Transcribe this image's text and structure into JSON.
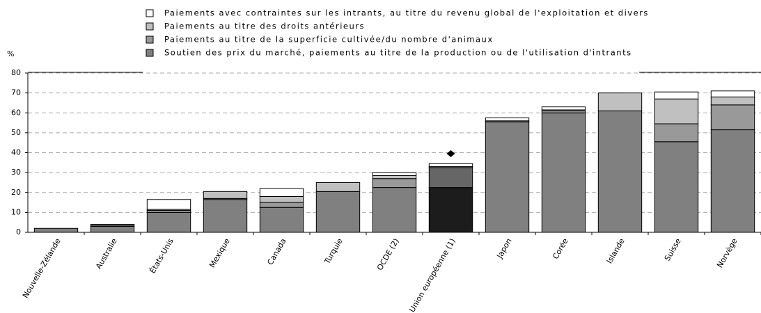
{
  "chart_data": {
    "type": "stacked_bar",
    "y_label": "%",
    "categories": [
      "Nouvelle-Zélande",
      "Australie",
      "États-Unis",
      "Mexique",
      "Canada",
      "Turquie",
      "OCDE (2)",
      "Union européenne (1)",
      "Japon",
      "Corée",
      "Islande",
      "Suisse",
      "Norvège"
    ],
    "series": [
      {
        "name": "Soutien des prix du marché, paiements au titre de la production ou de l'utilisation d'intrants",
        "color": "#808080",
        "highlight_color": "#1c1c1c",
        "values": [
          2,
          3,
          10,
          16.5,
          12.5,
          20.5,
          22.5,
          22.5,
          55.5,
          60,
          61,
          45.5,
          51.5
        ]
      },
      {
        "name": "Paiements au titre de la superficie cultivée/du nombre d'animaux",
        "color": "#999999",
        "highlight_color": "#666666",
        "values": [
          0,
          0.5,
          1,
          0.5,
          2.5,
          0,
          4.5,
          10,
          0.5,
          1,
          0,
          9,
          12.5
        ]
      },
      {
        "name": "Paiements au titre des droits antérieurs",
        "color": "#c0c0c0",
        "highlight_color": "#9a9a9a",
        "values": [
          0,
          0,
          0.5,
          3.5,
          3,
          4.5,
          1.5,
          0.5,
          0,
          0.5,
          9,
          12.5,
          4
        ]
      },
      {
        "name": "Paiements avec contraintes sur les intrants, au titre du revenu global de l'exploitation et divers",
        "color": "#ffffff",
        "highlight_color": "#ffffff",
        "values": [
          0,
          0.5,
          5,
          0,
          4,
          0,
          1.5,
          1.5,
          1.5,
          1.5,
          0,
          3.5,
          3
        ]
      }
    ],
    "highlight": [
      false,
      false,
      false,
      false,
      false,
      false,
      false,
      true,
      false,
      false,
      false,
      false,
      false
    ],
    "marker_values": [
      null,
      null,
      null,
      null,
      null,
      null,
      null,
      39.5,
      null,
      null,
      null,
      null,
      null
    ],
    "marker_color": "#000000",
    "ylim": [
      0,
      80
    ],
    "yticks": [
      0,
      10,
      20,
      30,
      40,
      50,
      60,
      70,
      80
    ],
    "grid": true
  }
}
